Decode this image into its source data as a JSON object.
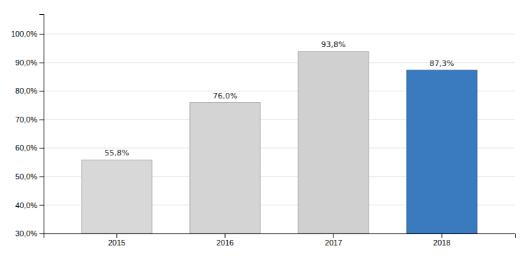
{
  "chart_data": {
    "type": "bar",
    "categories": [
      "2015",
      "2016",
      "2017",
      "2018"
    ],
    "values": [
      55.8,
      76.0,
      93.8,
      87.3
    ],
    "value_labels": [
      "55,8%",
      "76,0%",
      "93,8%",
      "87,3%"
    ],
    "data_labels": true,
    "colors": [
      "#d8d8d8",
      "#d4d4d4",
      "#d0d0d0",
      "#3a7abf"
    ],
    "ylim": [
      30.0,
      107.0
    ],
    "yticks": [
      {
        "value": 30.0,
        "label": "30,0%"
      },
      {
        "value": 40.0,
        "label": "40,0%"
      },
      {
        "value": 50.0,
        "label": "50,0%"
      },
      {
        "value": 60.0,
        "label": "60,0%"
      },
      {
        "value": 70.0,
        "label": "70,0%"
      },
      {
        "value": 80.0,
        "label": "80,0%"
      },
      {
        "value": 90.0,
        "label": "90,0%"
      },
      {
        "value": 100.0,
        "label": "100,0%"
      }
    ],
    "grid": true
  }
}
